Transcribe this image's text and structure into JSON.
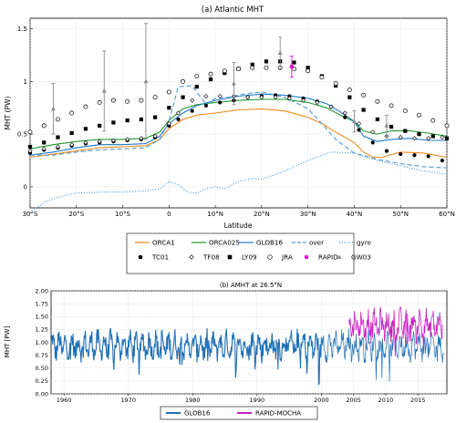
{
  "chart_data": [
    {
      "type": "line",
      "title": "(a) Atlantic MHT",
      "xlabel": "Latitude",
      "ylabel": "MHT (PW)",
      "xlim": [
        -30,
        60
      ],
      "ylim": [
        -0.2,
        1.6
      ],
      "x_ticks": [
        -30,
        -20,
        -10,
        0,
        10,
        20,
        30,
        40,
        50,
        60
      ],
      "x_tick_labels": [
        "30°S",
        "20°S",
        "10°S",
        "0",
        "10°N",
        "20°N",
        "30°N",
        "40°N",
        "50°N",
        "60°N"
      ],
      "y_ticks": [
        0,
        0.5,
        1,
        1.5
      ],
      "y_tick_labels": [
        "0",
        "0.5",
        "1",
        "1.5"
      ],
      "grid": true,
      "legend_location": "below",
      "series": [
        {
          "name": "ORCA1",
          "style": "line",
          "color": "#f08a1e",
          "x": [
            -30,
            -25,
            -20,
            -15,
            -10,
            -5,
            -2,
            0,
            3,
            6,
            10,
            15,
            20,
            25,
            30,
            33,
            36,
            40,
            42,
            44,
            46,
            50,
            55,
            60
          ],
          "y": [
            0.28,
            0.31,
            0.34,
            0.37,
            0.38,
            0.39,
            0.45,
            0.55,
            0.64,
            0.68,
            0.7,
            0.73,
            0.74,
            0.72,
            0.66,
            0.6,
            0.52,
            0.42,
            0.33,
            0.28,
            0.28,
            0.33,
            0.32,
            0.28
          ]
        },
        {
          "name": "ORCA025",
          "style": "line",
          "color": "#1f9a2c",
          "x": [
            -30,
            -25,
            -20,
            -15,
            -10,
            -5,
            -2,
            0,
            3,
            6,
            10,
            15,
            20,
            25,
            30,
            34,
            37,
            40,
            42,
            45,
            48,
            52,
            56,
            60
          ],
          "y": [
            0.36,
            0.4,
            0.43,
            0.45,
            0.45,
            0.46,
            0.52,
            0.63,
            0.74,
            0.78,
            0.8,
            0.82,
            0.83,
            0.83,
            0.8,
            0.75,
            0.68,
            0.62,
            0.53,
            0.5,
            0.53,
            0.53,
            0.51,
            0.48
          ]
        },
        {
          "name": "GLOB16",
          "style": "line",
          "color": "#1e7bc8",
          "x": [
            -30,
            -25,
            -20,
            -15,
            -10,
            -5,
            -2,
            0,
            3,
            6,
            10,
            15,
            20,
            25,
            30,
            34,
            37,
            40,
            42,
            45,
            48,
            52,
            56,
            60
          ],
          "y": [
            0.3,
            0.33,
            0.37,
            0.4,
            0.4,
            0.41,
            0.48,
            0.6,
            0.7,
            0.77,
            0.82,
            0.86,
            0.88,
            0.87,
            0.84,
            0.79,
            0.71,
            0.62,
            0.48,
            0.43,
            0.45,
            0.46,
            0.44,
            0.44
          ]
        },
        {
          "name": "over",
          "style": "dashed",
          "color": "#4a9bd4",
          "x": [
            -30,
            -25,
            -20,
            -15,
            -10,
            -5,
            -2,
            0,
            2,
            5,
            8,
            10,
            13,
            16,
            20,
            25,
            30,
            33,
            36,
            40,
            45,
            50,
            55,
            60
          ],
          "y": [
            0.3,
            0.3,
            0.33,
            0.35,
            0.36,
            0.37,
            0.45,
            0.62,
            0.95,
            0.96,
            0.78,
            0.84,
            0.85,
            0.88,
            0.9,
            0.85,
            0.74,
            0.6,
            0.45,
            0.32,
            0.26,
            0.22,
            0.19,
            0.18
          ]
        },
        {
          "name": "gyre",
          "style": "dotted",
          "color": "#3a92d8",
          "x": [
            -30,
            -27,
            -24,
            -20,
            -15,
            -10,
            -5,
            -2,
            0,
            2,
            4,
            6,
            8,
            10,
            12,
            15,
            18,
            20,
            25,
            30,
            35,
            40,
            45,
            50,
            55,
            60
          ],
          "y": [
            -0.25,
            -0.15,
            -0.1,
            -0.06,
            -0.05,
            -0.05,
            -0.04,
            -0.02,
            0.05,
            0.02,
            -0.05,
            -0.06,
            -0.02,
            0.0,
            -0.02,
            0.05,
            0.08,
            0.07,
            0.15,
            0.25,
            0.33,
            0.32,
            0.25,
            0.2,
            0.15,
            0.12
          ]
        },
        {
          "name": "TC01",
          "style": "marker",
          "marker": "filled-circle",
          "color": "#000000",
          "x": [
            -30,
            -27,
            -24,
            -21,
            -18,
            -15,
            -12,
            -9,
            -6,
            -3,
            0,
            2,
            5,
            8,
            11,
            14,
            17,
            20,
            23,
            26,
            29,
            32,
            35,
            38,
            41,
            44,
            47,
            50,
            53,
            56,
            59
          ],
          "y": [
            0.32,
            0.35,
            0.37,
            0.39,
            0.41,
            0.42,
            0.43,
            0.44,
            0.45,
            0.47,
            0.58,
            0.64,
            0.72,
            0.77,
            0.8,
            0.82,
            0.85,
            0.86,
            0.87,
            0.86,
            0.84,
            0.81,
            0.76,
            0.66,
            0.54,
            0.42,
            0.34,
            0.31,
            0.3,
            0.29,
            0.25
          ]
        },
        {
          "name": "TF08",
          "style": "marker",
          "marker": "open-diamond",
          "color": "#000000",
          "x": [
            -30,
            -27,
            -24,
            -21,
            -18,
            -15,
            -12,
            -9,
            -6,
            -3,
            0,
            2,
            5,
            8,
            11,
            14,
            17,
            20,
            23,
            26,
            29,
            32,
            35,
            38,
            41,
            44,
            47,
            50,
            53,
            56,
            59
          ],
          "y": [
            0.34,
            0.36,
            0.38,
            0.4,
            0.42,
            0.43,
            0.44,
            0.45,
            0.46,
            0.48,
            0.6,
            0.7,
            0.82,
            0.86,
            0.86,
            0.86,
            0.85,
            0.85,
            0.85,
            0.84,
            0.82,
            0.8,
            0.76,
            0.7,
            0.6,
            0.52,
            0.48,
            0.47,
            0.46,
            0.46,
            0.47
          ]
        },
        {
          "name": "LY09",
          "style": "marker",
          "marker": "filled-square",
          "color": "#000000",
          "x": [
            -30,
            -27,
            -24,
            -21,
            -18,
            -15,
            -12,
            -9,
            -6,
            -3,
            0,
            3,
            6,
            9,
            12,
            15,
            18,
            21,
            24,
            27,
            30,
            33,
            36,
            39,
            42,
            45,
            48,
            51,
            54,
            57,
            60
          ],
          "y": [
            0.38,
            0.42,
            0.47,
            0.51,
            0.55,
            0.58,
            0.61,
            0.63,
            0.64,
            0.66,
            0.75,
            0.85,
            0.95,
            1.02,
            1.08,
            1.12,
            1.16,
            1.19,
            1.19,
            1.18,
            1.13,
            1.05,
            0.96,
            0.85,
            0.73,
            0.64,
            0.57,
            0.53,
            0.5,
            0.48,
            0.46
          ]
        },
        {
          "name": "JRA",
          "style": "marker",
          "marker": "open-circle",
          "color": "#000000",
          "x": [
            -30,
            -27,
            -24,
            -21,
            -18,
            -15,
            -12,
            -9,
            -6,
            -3,
            0,
            3,
            6,
            9,
            12,
            15,
            18,
            21,
            24,
            27,
            30,
            33,
            36,
            39,
            42,
            45,
            48,
            51,
            54,
            57,
            60
          ],
          "y": [
            0.52,
            0.58,
            0.64,
            0.7,
            0.76,
            0.8,
            0.82,
            0.81,
            0.82,
            0.85,
            0.9,
            1.0,
            1.05,
            1.07,
            1.1,
            1.12,
            1.13,
            1.13,
            1.13,
            1.12,
            1.1,
            1.04,
            0.98,
            0.92,
            0.87,
            0.81,
            0.77,
            0.72,
            0.68,
            0.63,
            0.58
          ]
        },
        {
          "name": "RAPID",
          "style": "errorbar",
          "marker": "filled-circle",
          "color": "#e01ec8",
          "x": [
            26.5
          ],
          "y": [
            1.14
          ],
          "err": [
            0.1
          ]
        },
        {
          "name": "GW03",
          "style": "errorbar",
          "marker": "filled-triangle",
          "color": "#8a8a8a",
          "x": [
            -25,
            -14,
            -5,
            14,
            24,
            40,
            47
          ],
          "y": [
            0.74,
            0.91,
            1.0,
            0.98,
            1.27,
            0.62,
            0.58
          ],
          "err": [
            0.24,
            0.38,
            0.55,
            0.2,
            0.15,
            0.1,
            0.1
          ]
        }
      ],
      "legend_rows": [
        [
          "ORCA1",
          "ORCA025",
          "GLOB16",
          "over",
          "gyre"
        ],
        [
          "TC01",
          "TF08",
          "LY09",
          "JRA",
          "RAPID",
          "GW03"
        ]
      ]
    },
    {
      "type": "line",
      "title": "(b) AMHT at 26.5°N",
      "ylabel": "MHT [PW]",
      "xlim": [
        1958,
        2019.5
      ],
      "ylim": [
        0.0,
        2.0
      ],
      "x_ticks": [
        1960,
        1970,
        1980,
        1990,
        2000,
        2005,
        2010,
        2015
      ],
      "x_tick_labels": [
        "1960",
        "1970",
        "1980",
        "1990",
        "2000",
        "2005",
        "2010",
        "2015"
      ],
      "y_ticks": [
        0.0,
        0.25,
        0.5,
        0.75,
        1.0,
        1.25,
        1.5,
        1.75,
        2.0
      ],
      "y_tick_labels": [
        "0.00",
        "0.25",
        "0.50",
        "0.75",
        "1.00",
        "1.25",
        "1.50",
        "1.75",
        "2.00"
      ],
      "grid": true,
      "legend_location": "below",
      "series": [
        {
          "name": "GLOB16",
          "color": "#1e6fb5",
          "x_range": [
            1958,
            2019
          ],
          "mean": 0.93,
          "amplitude": 0.28,
          "thick_until": 2000.0
        },
        {
          "name": "RAPID-MOCHA",
          "color": "#c71fc0",
          "x_range": [
            2004.3,
            2018.8
          ],
          "mean": 1.33,
          "amplitude": 0.3
        }
      ],
      "legend_entries": [
        "GLOB16",
        "RAPID-MOCHA"
      ]
    }
  ]
}
